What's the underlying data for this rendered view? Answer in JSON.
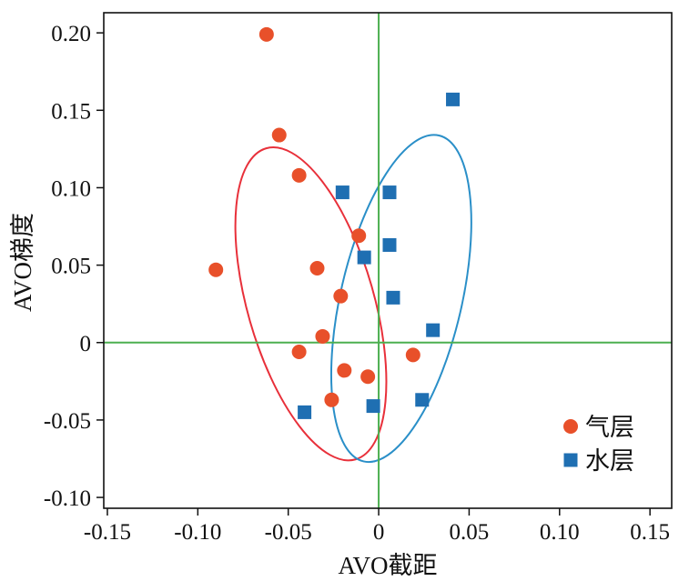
{
  "chart_data": {
    "type": "scatter",
    "title": "",
    "xlabel": "AVO截距",
    "ylabel": "AVO梯度",
    "xlim": [
      -0.152,
      0.162
    ],
    "ylim": [
      -0.107,
      0.213
    ],
    "x_ticks": [
      {
        "value": -0.15,
        "label": "-0.15"
      },
      {
        "value": -0.1,
        "label": "-0.10"
      },
      {
        "value": -0.05,
        "label": "-0.05"
      },
      {
        "value": 0.0,
        "label": "0"
      },
      {
        "value": 0.05,
        "label": "0.05"
      },
      {
        "value": 0.1,
        "label": "0.10"
      },
      {
        "value": 0.15,
        "label": "0.15"
      }
    ],
    "y_ticks": [
      {
        "value": 0.2,
        "label": "0.20"
      },
      {
        "value": 0.15,
        "label": "0.15"
      },
      {
        "value": 0.1,
        "label": "0.10"
      },
      {
        "value": 0.05,
        "label": "0.05"
      },
      {
        "value": 0.0,
        "label": "0"
      },
      {
        "value": -0.05,
        "label": "-0.05"
      },
      {
        "value": -0.1,
        "label": "-0.10"
      }
    ],
    "grid": false,
    "reference_lines": {
      "x": 0,
      "y": 0,
      "color": "#4caf50"
    },
    "legend_position": "bottom-right",
    "series": [
      {
        "name": "气层",
        "marker": "circle",
        "color": "#e8502a",
        "points": [
          {
            "x": -0.062,
            "y": 0.199
          },
          {
            "x": -0.055,
            "y": 0.134
          },
          {
            "x": -0.044,
            "y": 0.108
          },
          {
            "x": -0.09,
            "y": 0.047
          },
          {
            "x": -0.034,
            "y": 0.048
          },
          {
            "x": -0.011,
            "y": 0.069
          },
          {
            "x": -0.021,
            "y": 0.03
          },
          {
            "x": -0.031,
            "y": 0.004
          },
          {
            "x": -0.044,
            "y": -0.006
          },
          {
            "x": -0.019,
            "y": -0.018
          },
          {
            "x": -0.006,
            "y": -0.022
          },
          {
            "x": -0.026,
            "y": -0.037
          },
          {
            "x": 0.019,
            "y": -0.008
          }
        ],
        "ellipse": {
          "cx": -0.0375,
          "cy": 0.025,
          "rx": 0.035,
          "ry": 0.1045,
          "rotation_deg": -16,
          "color": "#e8303a"
        }
      },
      {
        "name": "水层",
        "marker": "square",
        "color": "#1f6fb2",
        "points": [
          {
            "x": 0.041,
            "y": 0.157
          },
          {
            "x": -0.02,
            "y": 0.097
          },
          {
            "x": 0.006,
            "y": 0.097
          },
          {
            "x": 0.006,
            "y": 0.063
          },
          {
            "x": -0.008,
            "y": 0.055
          },
          {
            "x": 0.008,
            "y": 0.029
          },
          {
            "x": 0.03,
            "y": 0.008
          },
          {
            "x": 0.024,
            "y": -0.037
          },
          {
            "x": -0.003,
            "y": -0.041
          },
          {
            "x": -0.041,
            "y": -0.045
          }
        ],
        "ellipse": {
          "cx": 0.0125,
          "cy": 0.0285,
          "rx": 0.0335,
          "ry": 0.108,
          "rotation_deg": 13,
          "color": "#2a8fc8"
        }
      }
    ]
  }
}
